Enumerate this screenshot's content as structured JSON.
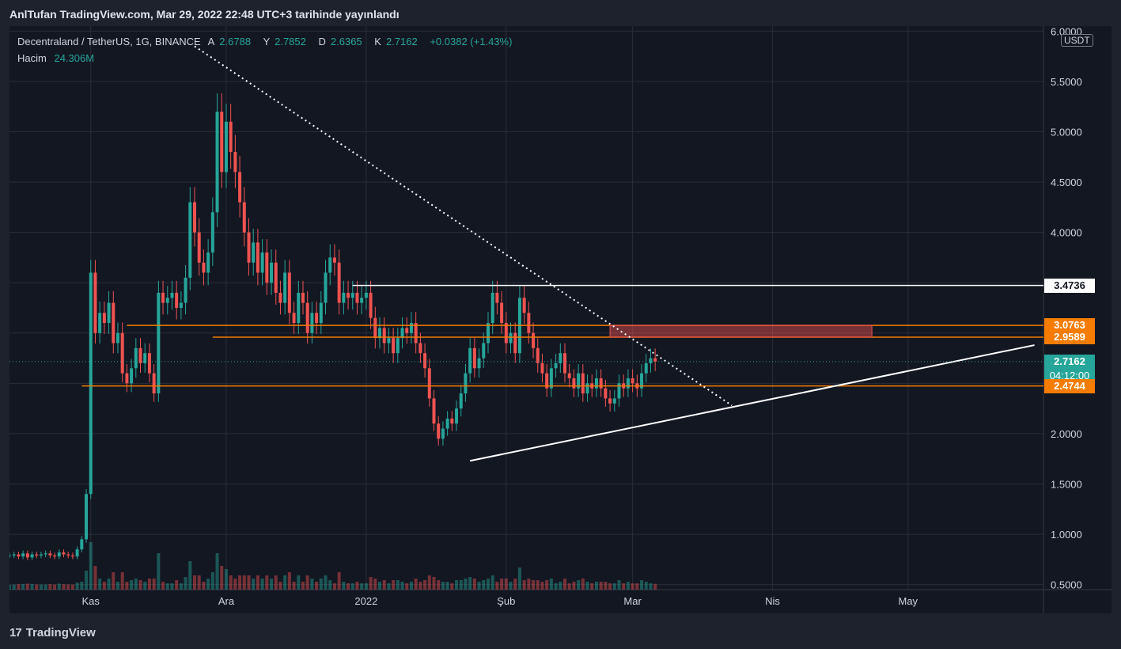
{
  "header": {
    "publisher_line": "AnlTufan TradingView.com, Mar 29, 2022 22:48 UTC+3 tarihinde yayınlandı"
  },
  "legend": {
    "symbol": "Decentraland / TetherUS, 1G, BINANCE",
    "open_label": "A",
    "open_value": "2.6788",
    "high_label": "Y",
    "high_value": "2.7852",
    "low_label": "D",
    "low_value": "2.6365",
    "close_label": "K",
    "close_value": "2.7162",
    "change": "+0.0382 (+1.43%)",
    "volume_label": "Hacim",
    "volume_value": "24.306M"
  },
  "currency_tag": "USDT",
  "footer": {
    "brand": "TradingView",
    "logo_glyph": "17"
  },
  "colors": {
    "up": "#26a69a",
    "down": "#ef5350",
    "orange": "#f57c00",
    "white": "#ffffff",
    "background": "#131722"
  },
  "price_tags": [
    {
      "text": "3.4736",
      "price": 3.4736,
      "bg": "#ffffff",
      "fg": "#131722"
    },
    {
      "text": "3.0763",
      "price": 3.0763,
      "bg": "#f57c00",
      "fg": "#ffffff"
    },
    {
      "text": "2.9589",
      "price": 2.9589,
      "bg": "#f57c00",
      "fg": "#ffffff"
    },
    {
      "text": "2.7162",
      "sub": "04:12:00",
      "price": 2.7162,
      "bg": "#26a69a",
      "fg": "#ffffff"
    },
    {
      "text": "2.4744",
      "price": 2.4744,
      "bg": "#f57c00",
      "fg": "#ffffff"
    }
  ],
  "chart_data": {
    "type": "candlestick",
    "title": "Decentraland / TetherUS, 1G, BINANCE",
    "y_axis_labels": [
      "6.0000",
      "5.5000",
      "5.0000",
      "4.5000",
      "4.0000",
      "3.5000",
      "3.0000",
      "2.5000",
      "2.0000",
      "1.5000",
      "1.0000",
      "0.5000"
    ],
    "y_ticks": [
      6.0,
      5.5,
      5.0,
      4.5,
      4.0,
      3.5,
      3.0,
      2.5,
      2.0,
      1.5,
      1.0,
      0.5
    ],
    "ylim": [
      0.45,
      6.05
    ],
    "x_axis_labels": [
      "Kas",
      "Ara",
      "2022",
      "Şub",
      "Mar",
      "Nis",
      "May"
    ],
    "x_tick_dates": [
      "2021-11-01",
      "2021-12-01",
      "2022-01-01",
      "2022-02-01",
      "2022-03-01",
      "2022-04-01",
      "2022-05-01"
    ],
    "x_range": [
      "2021-10-14",
      "2022-05-31"
    ],
    "grid": true,
    "close_series": [
      0.79,
      0.8,
      0.78,
      0.81,
      0.77,
      0.8,
      0.79,
      0.8,
      0.81,
      0.79,
      0.78,
      0.82,
      0.8,
      0.79,
      0.78,
      0.85,
      0.95,
      1.4,
      3.6,
      3.0,
      3.2,
      3.1,
      3.3,
      2.9,
      3.0,
      2.6,
      2.5,
      2.65,
      2.85,
      2.7,
      2.8,
      2.6,
      2.4,
      3.4,
      3.3,
      3.35,
      3.4,
      3.25,
      3.3,
      3.55,
      4.3,
      4.0,
      3.7,
      3.6,
      3.8,
      4.2,
      5.2,
      4.6,
      5.1,
      4.8,
      4.6,
      4.3,
      4.0,
      3.7,
      3.9,
      3.6,
      3.8,
      3.5,
      3.7,
      3.4,
      3.3,
      3.6,
      3.2,
      3.1,
      3.4,
      3.3,
      3.0,
      3.2,
      3.1,
      3.3,
      3.6,
      3.75,
      3.7,
      3.3,
      3.4,
      3.35,
      3.4,
      3.3,
      3.35,
      3.4,
      3.15,
      2.95,
      3.05,
      2.9,
      2.95,
      2.8,
      2.95,
      3.05,
      3.0,
      3.1,
      2.9,
      2.8,
      2.65,
      2.35,
      2.1,
      1.95,
      2.05,
      2.15,
      2.1,
      2.25,
      2.4,
      2.6,
      2.85,
      2.65,
      2.75,
      2.9,
      3.1,
      3.4,
      3.3,
      3.1,
      2.9,
      3.0,
      2.8,
      3.35,
      3.2,
      3.0,
      2.85,
      2.7,
      2.6,
      2.45,
      2.65,
      2.7,
      2.8,
      2.6,
      2.55,
      2.45,
      2.6,
      2.4,
      2.5,
      2.45,
      2.55,
      2.45,
      2.35,
      2.3,
      2.35,
      2.5,
      2.45,
      2.55,
      2.5,
      2.45,
      2.6,
      2.7,
      2.75,
      2.7162
    ],
    "series_start": "2021-10-14",
    "volume_label": "Hacim",
    "last_volume": "24.306M",
    "drawings": [
      {
        "type": "horizontal_line",
        "price": 3.4736,
        "from": "2021-12-29",
        "color": "#ffffff"
      },
      {
        "type": "horizontal_line",
        "price": 3.0763,
        "from": "2021-11-09",
        "color": "#f57c00"
      },
      {
        "type": "horizontal_line",
        "price": 2.9589,
        "from": "2021-11-28",
        "color": "#f57c00"
      },
      {
        "type": "horizontal_line",
        "price": 2.4744,
        "from": "2021-10-30",
        "color": "#f57c00"
      },
      {
        "type": "zone",
        "price_top": 3.0763,
        "price_bottom": 2.9589,
        "from": "2022-02-24",
        "to": "2022-04-23",
        "color": "#ef5350"
      },
      {
        "type": "trend_line_dotted",
        "from_date": "2021-11-24",
        "from_price": 5.85,
        "to_date": "2022-03-23",
        "to_price": 2.28,
        "color": "#ffffff"
      },
      {
        "type": "trend_line",
        "from_date": "2022-01-24",
        "from_price": 1.73,
        "to_date": "2022-05-29",
        "to_price": 2.88,
        "color": "#ffffff"
      }
    ]
  }
}
